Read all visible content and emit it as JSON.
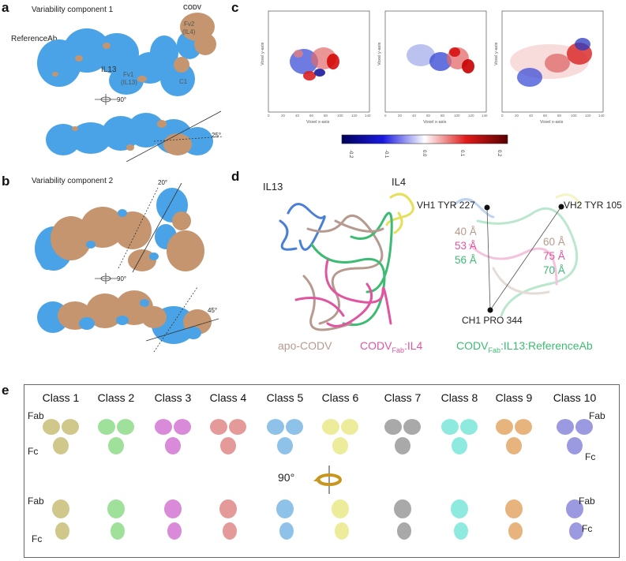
{
  "panel_a": {
    "label": "a",
    "title": "Variability component 1",
    "codv": "CODV",
    "reference": "ReferenceAb",
    "il13": "IL13",
    "fv1": "Fv1",
    "fv1_sub": "(IL13)",
    "fv2": "Fv2",
    "fv2_sub": "(IL4)",
    "c1": "C1",
    "rot": "90°",
    "angle": "25°"
  },
  "panel_b": {
    "label": "b",
    "title": "Variability component 2",
    "angle_top": "20°",
    "rot": "90°",
    "angle_bottom": "45°"
  },
  "panel_c": {
    "label": "c",
    "ylabel": "Voxel y-axis",
    "xlabel": "Voxel x-axis",
    "ticks": [
      "0",
      "20",
      "40",
      "60",
      "80",
      "100",
      "120",
      "140"
    ],
    "colorbar_ticks": [
      "-0.2",
      "-0.1",
      "0.0",
      "0.1",
      "0.2"
    ]
  },
  "panel_d": {
    "label": "d",
    "il13": "IL13",
    "il4": "IL4",
    "vh1": "VH1 TYR 227",
    "vh2": "VH2 TYR 105",
    "ch1": "CH1 PRO 344",
    "left_dists": [
      "40 Å",
      "53 Å",
      "56 Å"
    ],
    "right_dists": [
      "60 Å",
      "75 Å",
      "70 Å"
    ],
    "legend_apo": "apo-CODV",
    "legend_fab_il4_a": "CODV",
    "legend_fab_il4_sub": "Fab",
    "legend_fab_il4_b": ":IL4",
    "legend_ref_a": "CODV",
    "legend_ref_sub": "Fab",
    "legend_ref_b": ":IL13:ReferenceAb",
    "colors": {
      "apo": "#b79a8f",
      "il4": "#e0559f",
      "ref": "#3dbb73",
      "il13": "#4a7fd6",
      "il4_ligand": "#e5e05a"
    }
  },
  "panel_e": {
    "label": "e",
    "classes": [
      "Class 1",
      "Class 2",
      "Class 3",
      "Class 4",
      "Class 5",
      "Class 6",
      "Class 7",
      "Class 8",
      "Class 9",
      "Class 10"
    ],
    "colors": [
      "#cfc88a",
      "#9fe09a",
      "#d98ad8",
      "#e59a9a",
      "#8ec2e8",
      "#ecec9a",
      "#a9a9a9",
      "#8eeadf",
      "#e8b47e",
      "#9b9ae0"
    ],
    "fab": "Fab",
    "fc": "Fc",
    "rot": "90°"
  }
}
